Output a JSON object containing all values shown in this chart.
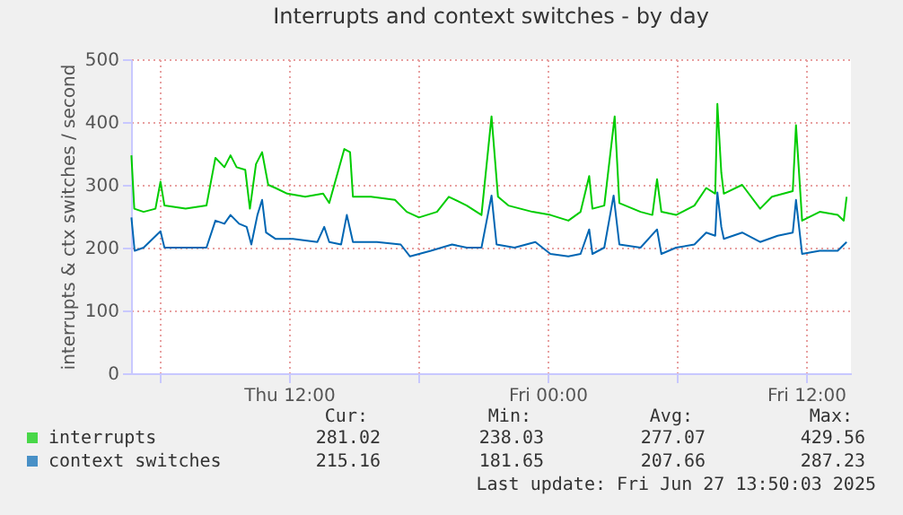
{
  "chart_data": {
    "type": "line",
    "title": "Interrupts and context switches - by day",
    "ylabel": "interrupts & ctx switches / second",
    "xlim": [
      "2025-06-26T04:40",
      "2025-06-27T14:05"
    ],
    "xticks": [
      {
        "value": "2025-06-26T06:00",
        "label": null
      },
      {
        "value": "2025-06-26T12:00",
        "label": "Thu 12:00"
      },
      {
        "value": "2025-06-26T18:00",
        "label": null
      },
      {
        "value": "2025-06-27T00:00",
        "label": "Fri 00:00"
      },
      {
        "value": "2025-06-27T06:00",
        "label": null
      },
      {
        "value": "2025-06-27T12:00",
        "label": "Fri 12:00"
      }
    ],
    "ylim": [
      0,
      500
    ],
    "yticks": [
      0,
      100,
      200,
      300,
      400,
      500
    ],
    "grid": true,
    "legend": "bottom",
    "line_style": "solid",
    "series": [
      {
        "name": "interrupts",
        "color": "#00cc00",
        "x": [
          "2025-06-26T04:41",
          "2025-06-26T04:49",
          "2025-06-26T05:15",
          "2025-06-26T05:48",
          "2025-06-26T06:02",
          "2025-06-26T06:13",
          "2025-06-26T07:12",
          "2025-06-26T08:10",
          "2025-06-26T08:35",
          "2025-06-26T09:00",
          "2025-06-26T09:17",
          "2025-06-26T09:34",
          "2025-06-26T09:58",
          "2025-06-26T10:11",
          "2025-06-26T10:28",
          "2025-06-26T10:45",
          "2025-06-26T11:02",
          "2025-06-26T11:22",
          "2025-06-26T11:55",
          "2025-06-26T12:45",
          "2025-06-26T13:35",
          "2025-06-26T13:52",
          "2025-06-26T14:34",
          "2025-06-26T14:50",
          "2025-06-26T14:58",
          "2025-06-26T15:48",
          "2025-06-26T16:55",
          "2025-06-26T17:28",
          "2025-06-26T18:02",
          "2025-06-26T18:52",
          "2025-06-26T19:25",
          "2025-06-26T20:15",
          "2025-06-26T20:56",
          "2025-06-26T21:24",
          "2025-06-26T21:42",
          "2025-06-26T22:11",
          "2025-06-26T23:18",
          "2025-06-27T00:08",
          "2025-06-27T00:58",
          "2025-06-27T01:32",
          "2025-06-27T01:56",
          "2025-06-27T02:05",
          "2025-06-27T02:38",
          "2025-06-27T03:07",
          "2025-06-27T03:20",
          "2025-06-27T04:19",
          "2025-06-27T04:52",
          "2025-06-27T05:05",
          "2025-06-27T05:17",
          "2025-06-27T05:58",
          "2025-06-27T06:49",
          "2025-06-27T07:22",
          "2025-06-27T07:47",
          "2025-06-27T07:53",
          "2025-06-27T08:04",
          "2025-06-27T08:11",
          "2025-06-27T09:02",
          "2025-06-27T09:52",
          "2025-06-27T10:25",
          "2025-06-27T11:23",
          "2025-06-27T11:32",
          "2025-06-27T11:49",
          "2025-06-27T12:38",
          "2025-06-27T13:28",
          "2025-06-27T13:45",
          "2025-06-27T13:53"
        ],
        "values": [
          347,
          262,
          257,
          262,
          305,
          267,
          262,
          267,
          343,
          328,
          347,
          328,
          324,
          262,
          333,
          352,
          300,
          295,
          286,
          281,
          286,
          271,
          357,
          352,
          281,
          281,
          276,
          257,
          248,
          257,
          281,
          267,
          252,
          409,
          281,
          267,
          257,
          252,
          243,
          257,
          314,
          262,
          267,
          409,
          271,
          257,
          252,
          309,
          257,
          252,
          267,
          295,
          286,
          429,
          319,
          286,
          300,
          262,
          281,
          290,
          395,
          243,
          257,
          252,
          243,
          281
        ]
      },
      {
        "name": "context switches",
        "color": "#0066b3",
        "x": [
          "2025-06-26T04:41",
          "2025-06-26T04:50",
          "2025-06-26T05:15",
          "2025-06-26T06:02",
          "2025-06-26T06:13",
          "2025-06-26T07:12",
          "2025-06-26T08:10",
          "2025-06-26T08:35",
          "2025-06-26T09:00",
          "2025-06-26T09:17",
          "2025-06-26T09:41",
          "2025-06-26T10:02",
          "2025-06-26T10:15",
          "2025-06-26T10:32",
          "2025-06-26T10:45",
          "2025-06-26T10:56",
          "2025-06-26T11:22",
          "2025-06-26T12:11",
          "2025-06-26T13:19",
          "2025-06-26T13:38",
          "2025-06-26T13:52",
          "2025-06-26T14:25",
          "2025-06-26T14:41",
          "2025-06-26T14:58",
          "2025-06-26T16:05",
          "2025-06-26T17:11",
          "2025-06-26T17:37",
          "2025-06-26T18:35",
          "2025-06-26T19:34",
          "2025-06-26T20:15",
          "2025-06-26T20:56",
          "2025-06-26T21:24",
          "2025-06-26T21:38",
          "2025-06-26T22:28",
          "2025-06-26T23:26",
          "2025-06-27T00:08",
          "2025-06-27T00:58",
          "2025-06-27T01:32",
          "2025-06-27T01:56",
          "2025-06-27T02:05",
          "2025-06-27T02:38",
          "2025-06-27T03:04",
          "2025-06-27T03:20",
          "2025-06-27T04:19",
          "2025-06-27T05:05",
          "2025-06-27T05:17",
          "2025-06-27T05:58",
          "2025-06-27T06:49",
          "2025-06-27T07:22",
          "2025-06-27T07:47",
          "2025-06-27T07:53",
          "2025-06-27T08:04",
          "2025-06-27T08:11",
          "2025-06-27T09:02",
          "2025-06-27T09:52",
          "2025-06-27T10:41",
          "2025-06-27T11:23",
          "2025-06-27T11:32",
          "2025-06-27T11:49",
          "2025-06-27T12:38",
          "2025-06-27T13:28",
          "2025-06-27T13:53"
        ],
        "values": [
          248,
          195,
          200,
          226,
          200,
          200,
          200,
          243,
          238,
          252,
          238,
          233,
          205,
          252,
          276,
          224,
          214,
          214,
          209,
          233,
          209,
          205,
          252,
          209,
          209,
          205,
          186,
          195,
          205,
          200,
          200,
          283,
          205,
          200,
          209,
          190,
          186,
          190,
          229,
          190,
          200,
          283,
          205,
          200,
          229,
          190,
          200,
          205,
          224,
          219,
          288,
          233,
          214,
          224,
          209,
          219,
          224,
          276,
          190,
          195,
          195,
          209
        ]
      }
    ],
    "annotations": [
      "Cur:",
      "Min:",
      "Avg:",
      "Max:",
      "281.02",
      "238.03",
      "277.07",
      "429.56",
      "215.16",
      "181.65",
      "207.66",
      "287.23",
      "Last update: Fri Jun 27 13:50:03 2025"
    ]
  }
}
